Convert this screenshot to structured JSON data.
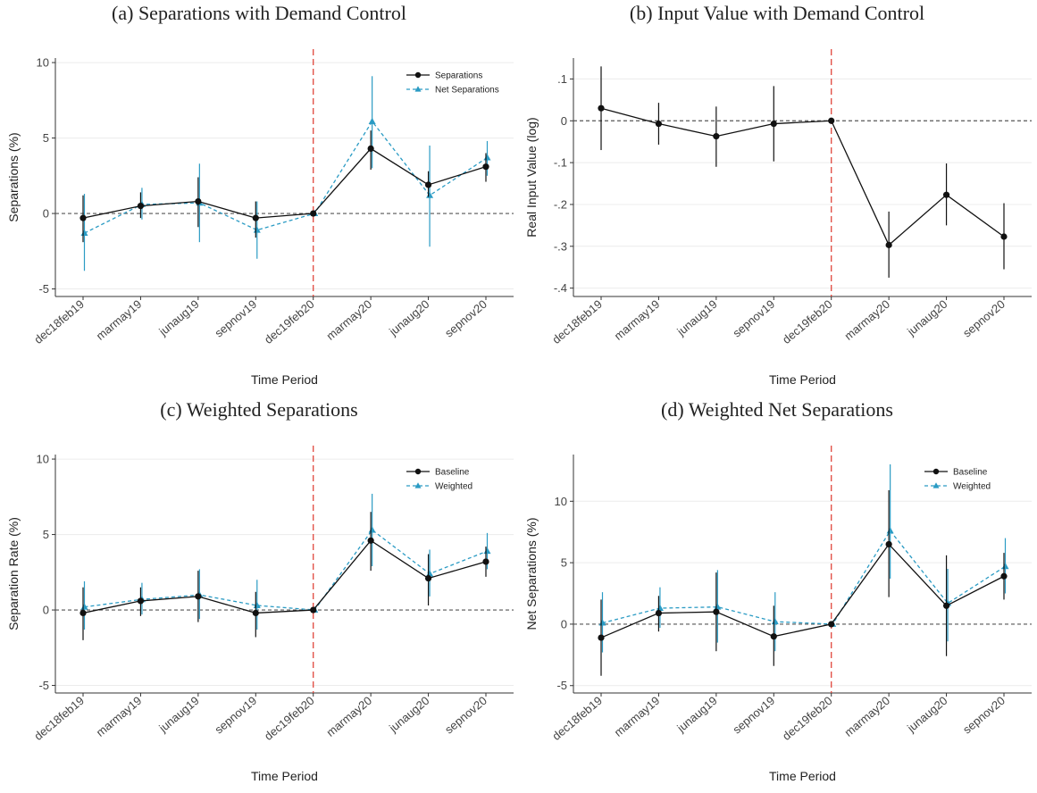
{
  "chart_data": [
    {
      "type": "line",
      "title": "(a) Separations with Demand Control",
      "xlabel": "Time Period",
      "ylabel": "Separations (%)",
      "categories": [
        "dec18feb19",
        "marmay19",
        "junaug19",
        "sepnov19",
        "dec19feb20",
        "marmay20",
        "junaug20",
        "sepnov20"
      ],
      "ylim": [
        -5.5,
        10.3
      ],
      "yticks": [
        -5,
        0,
        5,
        10
      ],
      "ytick_labels": [
        "-5",
        "0",
        "5",
        "10"
      ],
      "vline_index": 4,
      "legend": "top-right",
      "series": [
        {
          "name": "Separations",
          "color": "#111111",
          "marker": "circle",
          "dash": false,
          "values": [
            -0.3,
            0.5,
            0.8,
            -0.3,
            0.0,
            4.3,
            1.9,
            3.1
          ],
          "ci_low": [
            -1.9,
            -0.3,
            -0.9,
            -1.6,
            0.0,
            2.9,
            1.1,
            2.1
          ],
          "ci_high": [
            1.2,
            1.4,
            2.4,
            0.8,
            0.0,
            5.5,
            2.8,
            4.0
          ]
        },
        {
          "name": "Net Separations",
          "color": "#2a9bc4",
          "marker": "triangle",
          "dash": true,
          "values": [
            -1.3,
            0.6,
            0.7,
            -1.1,
            0.0,
            6.1,
            1.2,
            3.7
          ],
          "ci_low": [
            -3.8,
            -0.4,
            -1.9,
            -3.0,
            0.0,
            3.0,
            -2.2,
            2.5
          ],
          "ci_high": [
            1.3,
            1.7,
            3.3,
            0.8,
            0.0,
            9.1,
            4.5,
            4.8
          ]
        }
      ]
    },
    {
      "type": "line",
      "title": "(b) Input Value with Demand Control",
      "xlabel": "Time Period",
      "ylabel": "Real Input Value (log)",
      "categories": [
        "dec18feb19",
        "marmay19",
        "junaug19",
        "sepnov19",
        "dec19feb20",
        "marmay20",
        "junaug20",
        "sepnov20"
      ],
      "ylim": [
        -0.42,
        0.15
      ],
      "yticks": [
        0.1,
        0,
        -0.1,
        -0.2,
        -0.3,
        -0.4
      ],
      "ytick_labels": [
        ".1",
        "0",
        "-.1",
        "-.2",
        "-.3",
        "-.4"
      ],
      "vline_index": 4,
      "legend": "none",
      "series": [
        {
          "name": "",
          "color": "#111111",
          "marker": "circle",
          "dash": false,
          "values": [
            0.03,
            -0.007,
            -0.037,
            -0.007,
            0.0,
            -0.297,
            -0.177,
            -0.277
          ],
          "ci_low": [
            -0.07,
            -0.057,
            -0.11,
            -0.097,
            0.0,
            -0.375,
            -0.25,
            -0.355
          ],
          "ci_high": [
            0.13,
            0.043,
            0.034,
            0.083,
            0.0,
            -0.217,
            -0.102,
            -0.197
          ]
        }
      ]
    },
    {
      "type": "line",
      "title": "(c) Weighted Separations",
      "xlabel": "Time Period",
      "ylabel": "Separation Rate (%)",
      "categories": [
        "dec18feb19",
        "marmay19",
        "junaug19",
        "sepnov19",
        "dec19feb20",
        "marmay20",
        "junaug20",
        "sepnov20"
      ],
      "ylim": [
        -5.5,
        10.3
      ],
      "yticks": [
        -5,
        0,
        5,
        10
      ],
      "ytick_labels": [
        "-5",
        "0",
        "5",
        "10"
      ],
      "vline_index": 4,
      "legend": "top-right",
      "series": [
        {
          "name": "Baseline",
          "color": "#111111",
          "marker": "circle",
          "dash": false,
          "values": [
            -0.2,
            0.6,
            0.9,
            -0.2,
            0.0,
            4.6,
            2.1,
            3.2
          ],
          "ci_low": [
            -2.0,
            -0.4,
            -0.8,
            -1.8,
            0.0,
            2.6,
            0.3,
            2.2
          ],
          "ci_high": [
            1.5,
            1.5,
            2.6,
            1.2,
            0.0,
            6.5,
            3.7,
            4.2
          ]
        },
        {
          "name": "Weighted",
          "color": "#2a9bc4",
          "marker": "triangle",
          "dash": true,
          "values": [
            0.2,
            0.7,
            1.0,
            0.3,
            0.0,
            5.3,
            2.4,
            3.9
          ],
          "ci_low": [
            -1.3,
            -0.3,
            -0.6,
            -1.3,
            0.0,
            2.9,
            0.9,
            2.7
          ],
          "ci_high": [
            1.9,
            1.8,
            2.7,
            2.0,
            0.0,
            7.7,
            4.0,
            5.1
          ]
        }
      ]
    },
    {
      "type": "line",
      "title": "(d) Weighted Net Separations",
      "xlabel": "Time Period",
      "ylabel": "Net Separations (%)",
      "categories": [
        "dec18feb19",
        "marmay19",
        "junaug19",
        "sepnov19",
        "dec19feb20",
        "marmay20",
        "junaug20",
        "sepnov20"
      ],
      "ylim": [
        -5.6,
        13.8
      ],
      "yticks": [
        -5,
        0,
        5,
        10
      ],
      "ytick_labels": [
        "-5",
        "0",
        "5",
        "10"
      ],
      "vline_index": 4,
      "legend": "top-right",
      "series": [
        {
          "name": "Baseline",
          "color": "#111111",
          "marker": "circle",
          "dash": false,
          "values": [
            -1.1,
            0.9,
            1.0,
            -1.0,
            0.0,
            6.5,
            1.5,
            3.9
          ],
          "ci_low": [
            -4.2,
            -0.6,
            -2.2,
            -3.4,
            0.0,
            2.2,
            -2.6,
            2.0
          ],
          "ci_high": [
            2.0,
            2.3,
            4.2,
            1.5,
            0.0,
            10.9,
            5.6,
            5.8
          ]
        },
        {
          "name": "Weighted",
          "color": "#2a9bc4",
          "marker": "triangle",
          "dash": true,
          "values": [
            0.1,
            1.3,
            1.4,
            0.2,
            0.0,
            7.6,
            1.7,
            4.7
          ],
          "ci_low": [
            -2.3,
            -0.3,
            -1.5,
            -2.2,
            0.0,
            3.7,
            -1.4,
            2.5
          ],
          "ci_high": [
            2.6,
            3.0,
            4.4,
            2.6,
            0.0,
            13.0,
            4.5,
            7.0
          ]
        }
      ]
    }
  ]
}
